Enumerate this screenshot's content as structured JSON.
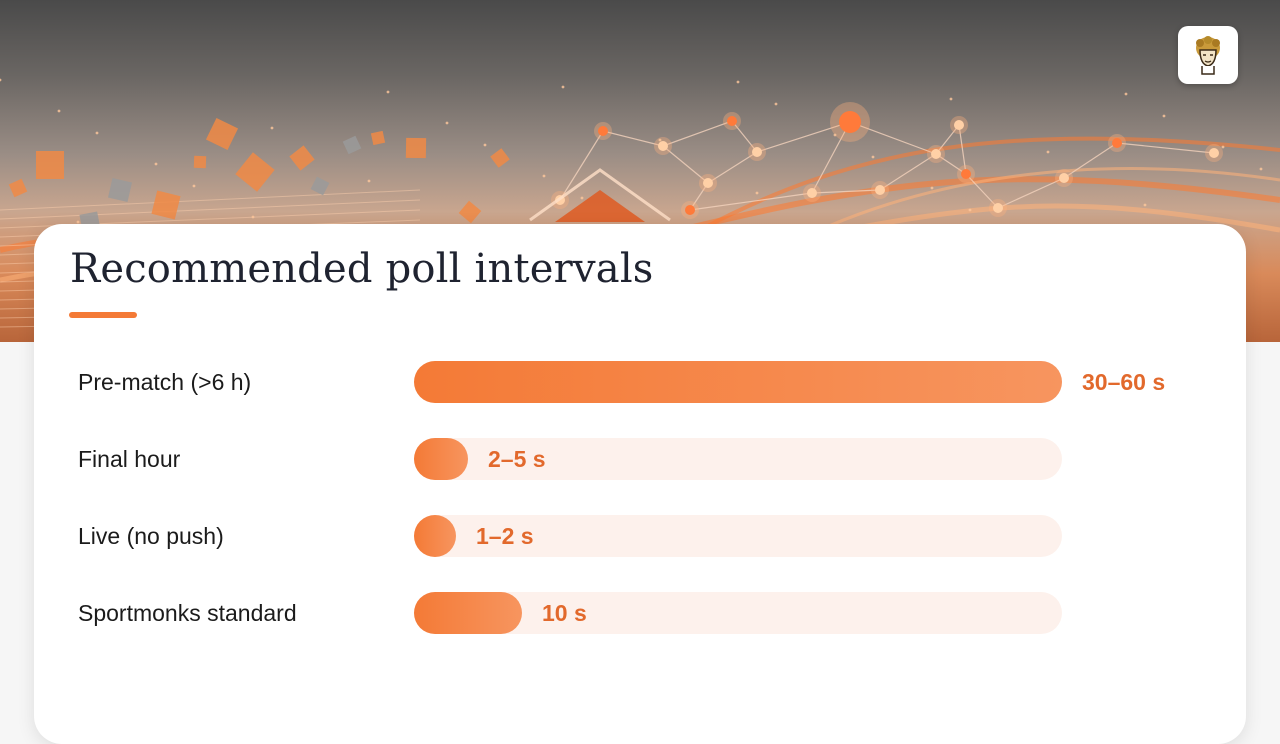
{
  "slide": {
    "title": "Recommended poll intervals"
  },
  "colors": {
    "accent": "#f47a36",
    "track": "#fdf1ec",
    "value_text": "#e2692c",
    "title_text": "#1f2330"
  },
  "icons": {
    "logo": "bust-logo-icon",
    "hero": "network-graph-illustration"
  },
  "chart_data": {
    "type": "bar",
    "orientation": "horizontal",
    "categories": [
      "Pre-match (>6 h)",
      "Final hour",
      "Live (no push)",
      "Sportmonks standard"
    ],
    "value_labels": [
      "30–60 s",
      "2–5 s",
      "1–2 s",
      "10 s"
    ],
    "values": [
      60,
      5,
      2,
      10
    ],
    "xlim": [
      0,
      60
    ],
    "grid": false,
    "legend": "none"
  }
}
